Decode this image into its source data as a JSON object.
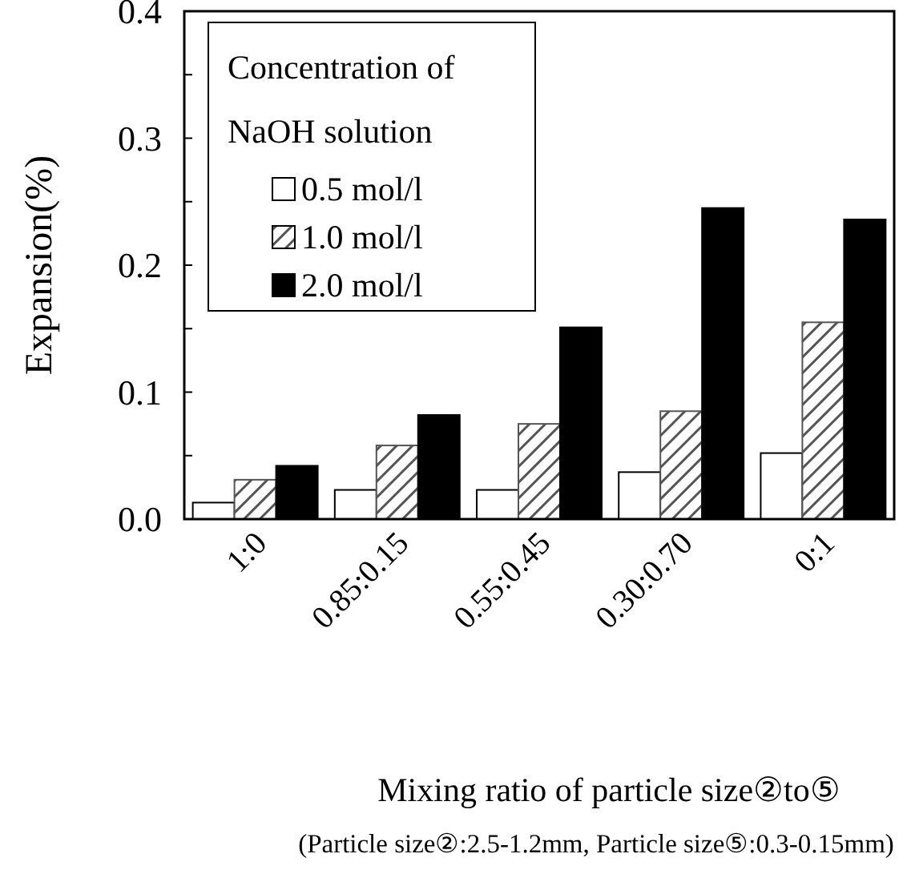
{
  "chart_data": {
    "type": "bar",
    "categories": [
      "1:0",
      "0.85:0.15",
      "0.55:0.45",
      "0.30:0.70",
      "0:1"
    ],
    "series": [
      {
        "name": "0.5 mol/l",
        "color": "#ffffff",
        "values": [
          0.013,
          0.023,
          0.023,
          0.037,
          0.052
        ]
      },
      {
        "name": "1.0 mol/l",
        "color": "#555555",
        "values": [
          0.031,
          0.058,
          0.075,
          0.085,
          0.155
        ]
      },
      {
        "name": "2.0 mol/l",
        "color": "#000000",
        "values": [
          0.042,
          0.082,
          0.151,
          0.245,
          0.236
        ]
      }
    ],
    "ylim": [
      0,
      0.4
    ],
    "yticks": [
      "0.0",
      {
        "value": 0.05,
        "label": null
      },
      {
        "value": 0.1,
        "label": "0.1"
      },
      {
        "value": 0.15,
        "label": null
      },
      {
        "value": 0.2,
        "label": "0.2"
      },
      {
        "value": 0.25,
        "label": null
      },
      {
        "value": 0.3,
        "label": "0.3"
      },
      {
        "value": 0.35,
        "label": null
      },
      {
        "value": 0.4,
        "label": "0.4"
      }
    ],
    "ylabel": "Expansion(%)",
    "xlabel": "Mixing ratio of particle size②to⑤",
    "legend_title": "Concentration of NaOH solution",
    "legend": "top left",
    "grid": false,
    "annotations": [
      "(Particle size②:2.5-1.2mm, Particle size⑤:0.3-0.15mm)"
    ]
  }
}
